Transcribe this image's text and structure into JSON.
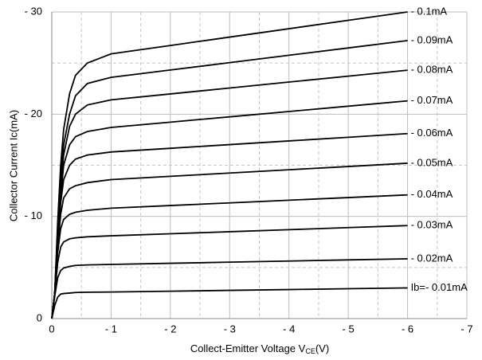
{
  "chart_data": {
    "type": "line",
    "ylabel": "Collector  Current  Ic(mA)",
    "xlabel": "Collect-Emitter Voltage  V",
    "xlabel_sub": "CE",
    "xlabel_end": "(V)",
    "xlim": [
      0,
      -7
    ],
    "ylim": [
      0,
      -30
    ],
    "xticks": [
      0,
      {
        "value": -1,
        "label": "- 1"
      },
      {
        "value": -2,
        "label": "- 2"
      },
      {
        "value": -3,
        "label": "- 3"
      },
      {
        "value": -4,
        "label": "- 4"
      },
      {
        "value": -5,
        "label": "- 5"
      },
      {
        "value": -6,
        "label": "- 6"
      },
      {
        "value": -7,
        "label": "- 7"
      }
    ],
    "yticks": [
      0,
      {
        "value": -10,
        "label": "- 10"
      },
      {
        "value": -20,
        "label": "- 20"
      },
      {
        "value": -30,
        "label": "- 30"
      }
    ],
    "xminorticks": [
      -0.5,
      -1.5,
      -2.5,
      -3.5,
      -4.5,
      -5.5,
      -6.5
    ],
    "yminorticks": [
      -5,
      -15,
      -25
    ],
    "grid": true,
    "x": [
      0,
      -0.05,
      -0.1,
      -0.15,
      -0.2,
      -0.3,
      -0.4,
      -0.6,
      -1,
      -2,
      -3,
      -4,
      -5,
      -6
    ],
    "series": [
      {
        "name": "Ib=- 0.01mA",
        "color": "#000000",
        "values": [
          0,
          -1.3,
          -2.1,
          -2.4,
          -2.45,
          -2.5,
          -2.55,
          -2.58,
          -2.6,
          -2.68,
          -2.76,
          -2.84,
          -2.92,
          -3.0
        ]
      },
      {
        "name": "- 0.02mA",
        "color": "#000000",
        "values": [
          0,
          -2.2,
          -4.0,
          -4.7,
          -4.95,
          -5.1,
          -5.2,
          -5.25,
          -5.3,
          -5.41,
          -5.52,
          -5.63,
          -5.74,
          -5.85
        ]
      },
      {
        "name": "- 0.03mA",
        "color": "#000000",
        "values": [
          0,
          -2.5,
          -5.5,
          -7.0,
          -7.5,
          -7.8,
          -7.9,
          -8.0,
          -8.1,
          -8.3,
          -8.5,
          -8.7,
          -8.9,
          -9.1
        ]
      },
      {
        "name": "- 0.04mA",
        "color": "#000000",
        "values": [
          0,
          -2.5,
          -6.5,
          -8.8,
          -9.7,
          -10.2,
          -10.4,
          -10.6,
          -10.8,
          -11.06,
          -11.32,
          -11.58,
          -11.84,
          -12.1
        ]
      },
      {
        "name": "- 0.05mA",
        "color": "#000000",
        "values": [
          0,
          -2.5,
          -7.0,
          -10.2,
          -11.8,
          -12.7,
          -13.0,
          -13.3,
          -13.6,
          -13.92,
          -14.24,
          -14.56,
          -14.88,
          -15.2
        ]
      },
      {
        "name": "- 0.06mA",
        "color": "#000000",
        "values": [
          0,
          -2.5,
          -7.5,
          -11.3,
          -13.6,
          -15.0,
          -15.6,
          -16.0,
          -16.3,
          -16.66,
          -17.02,
          -17.38,
          -17.74,
          -18.1
        ]
      },
      {
        "name": "- 0.07mA",
        "color": "#000000",
        "values": [
          0,
          -2.5,
          -8.0,
          -12.0,
          -15.0,
          -17.0,
          -17.8,
          -18.3,
          -18.7,
          -19.22,
          -19.74,
          -20.26,
          -20.78,
          -21.3
        ]
      },
      {
        "name": "- 0.08mA",
        "color": "#000000",
        "values": [
          0,
          -2.5,
          -8.5,
          -13.0,
          -16.0,
          -18.8,
          -20.0,
          -20.9,
          -21.4,
          -21.98,
          -22.56,
          -23.14,
          -23.72,
          -24.3
        ]
      },
      {
        "name": "- 0.09mA",
        "color": "#000000",
        "values": [
          0,
          -2.5,
          -9.0,
          -14.0,
          -17.0,
          -20.0,
          -21.8,
          -23.0,
          -23.6,
          -24.32,
          -25.04,
          -25.76,
          -26.48,
          -27.2
        ]
      },
      {
        "name": "- 0.1mA",
        "color": "#000000",
        "values": [
          0,
          -2.5,
          -9.5,
          -15.0,
          -18.5,
          -22.0,
          -23.8,
          -25.0,
          -25.9,
          -26.72,
          -27.54,
          -28.36,
          -29.18,
          -30.0
        ]
      }
    ]
  }
}
